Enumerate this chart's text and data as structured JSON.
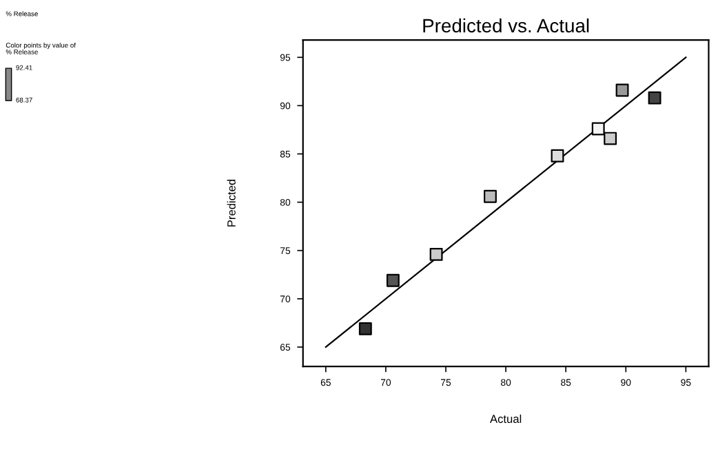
{
  "chart_data": {
    "type": "scatter",
    "title": "Predicted vs. Actual",
    "xlabel": "Actual",
    "ylabel": "Predicted",
    "annotations": [
      "% Release",
      "Color points by value of\n% Release",
      "92.41",
      "68.37"
    ],
    "x": [
      68.3,
      70.6,
      74.2,
      78.7,
      84.3,
      87.7,
      88.7,
      89.7,
      92.4
    ],
    "series": [
      {
        "marker": "square",
        "values": [
          66.9,
          71.9,
          74.6,
          80.6,
          84.8,
          87.6,
          86.6,
          91.6,
          90.8
        ],
        "colors": [
          "#333333",
          "#555555",
          "#cccccc",
          "#bbbbbb",
          "#dddddd",
          "#f4f4f4",
          "#cccccc",
          "#999999",
          "#444444"
        ]
      },
      {
        "type": "line",
        "x": [
          65,
          95
        ],
        "values": [
          65,
          95
        ],
        "color": "#000000"
      }
    ],
    "xlim": [
      63.1,
      96.9
    ],
    "ylim": [
      63.0,
      96.8
    ],
    "xticks": [
      65,
      70,
      75,
      80,
      85,
      90,
      95
    ],
    "yticks": [
      65,
      70,
      75,
      80,
      85,
      90,
      95
    ],
    "grid": false,
    "legend": false
  }
}
